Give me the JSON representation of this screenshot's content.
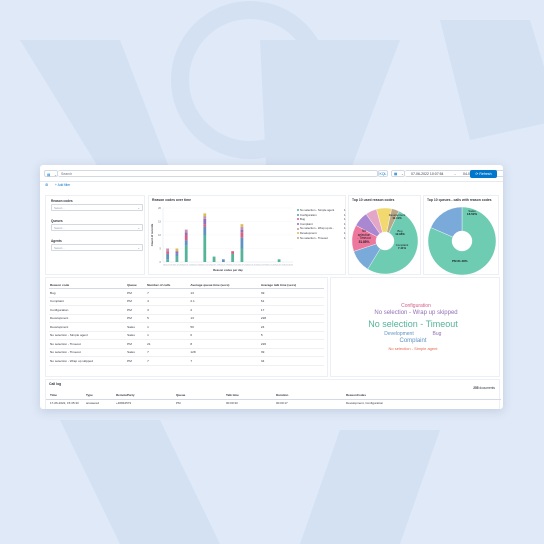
{
  "toolbar": {
    "search_placeholder": "Search",
    "kql_label": "KQL",
    "start_date": "07-06-2022 10:07:54",
    "arrow": "→",
    "end_date": "04-08-2022 10:07:56",
    "refresh_label": "Refresh"
  },
  "filter_bar": {
    "add_filter_label": "+ Add filter"
  },
  "controls": {
    "reason_codes": {
      "label": "Reason codes",
      "placeholder": "Select..."
    },
    "queues": {
      "label": "Queues",
      "placeholder": "Select..."
    },
    "agents": {
      "label": "Agents",
      "placeholder": "Select..."
    }
  },
  "bar_chart": {
    "title": "Reason codes over time",
    "legend": [
      {
        "name": "No selection - Simple agent",
        "count": "1",
        "color": "#54b399"
      },
      {
        "name": "Configuration",
        "count": "1",
        "color": "#6092c0"
      },
      {
        "name": "Bug",
        "count": "1",
        "color": "#d36086"
      },
      {
        "name": "Complaint",
        "count": "1",
        "color": "#9170b8"
      },
      {
        "name": "No selection - Wrap up sk...",
        "count": "1",
        "color": "#ca8eae"
      },
      {
        "name": "Development",
        "count": "1",
        "color": "#d6bf57"
      },
      {
        "name": "No selection - Timeout",
        "count": "1",
        "color": "#b9a888"
      }
    ]
  },
  "chart_data": [
    {
      "type": "bar",
      "title": "Reason codes over time",
      "xlabel": "Reason codes per day",
      "ylabel": "Count of records",
      "stacked": true,
      "x": [
        "2022-07-07",
        "2022-07-09",
        "2022-07-11",
        "2022-07-13",
        "2022-07-15",
        "2022-07-17",
        "2022-07-19",
        "2022-07-21",
        "2022-07-23",
        "2022-07-25",
        "2022-07-27",
        "2022-07-29",
        "2022-07-31",
        "2022-08-02"
      ],
      "series": [
        {
          "name": "No selection - Timeout",
          "color": "#54b399",
          "values": [
            1,
            2,
            6,
            0,
            10,
            2,
            0,
            3,
            5,
            0,
            0,
            0,
            1,
            0
          ]
        },
        {
          "name": "Configuration",
          "color": "#6092c0",
          "values": [
            2,
            1,
            2,
            0,
            3,
            0,
            1,
            0,
            4,
            0,
            0,
            0,
            0,
            0
          ]
        },
        {
          "name": "Bug",
          "color": "#d36086",
          "values": [
            1,
            0,
            2,
            0,
            1,
            0,
            0,
            1,
            2,
            0,
            0,
            0,
            0,
            0
          ]
        },
        {
          "name": "Complaint",
          "color": "#9170b8",
          "values": [
            0,
            1,
            1,
            0,
            2,
            0,
            0,
            0,
            1,
            0,
            0,
            0,
            0,
            0
          ]
        },
        {
          "name": "No selection - Wrap up skipped",
          "color": "#ca8eae",
          "values": [
            1,
            0,
            1,
            0,
            1,
            0,
            0,
            0,
            1,
            0,
            0,
            0,
            0,
            0
          ]
        },
        {
          "name": "Development",
          "color": "#d6bf57",
          "values": [
            0,
            1,
            0,
            0,
            1,
            0,
            0,
            0,
            1,
            0,
            0,
            0,
            0,
            0
          ]
        },
        {
          "name": "No selection - Simple agent",
          "color": "#b9a888",
          "values": [
            0,
            0,
            0,
            0,
            0,
            0,
            0,
            0,
            0,
            0,
            0,
            0,
            0,
            0
          ]
        }
      ],
      "ylim": [
        0,
        20
      ]
    },
    {
      "type": "pie",
      "title": "Top 10 used reason codes",
      "donut": true,
      "slices": [
        {
          "label": "No selection - Timeout",
          "value": 51.85,
          "color": "#6dccb1"
        },
        {
          "label": "Development",
          "value": 11.11,
          "color": "#79aad9"
        },
        {
          "label": "Bug",
          "value": 12.96,
          "color": "#ee789d"
        },
        {
          "label": "Complaint",
          "value": 7.41,
          "color": "#a987d1"
        },
        {
          "label": "No selection - Wrap up skipped",
          "value": 5.56,
          "color": "#e4a6c7"
        },
        {
          "label": "Configuration",
          "value": 7.41,
          "color": "#f1d86f"
        },
        {
          "label": "No selection - Simple agent",
          "value": 3.7,
          "color": "#b9a888"
        }
      ],
      "printed_labels": [
        {
          "label": "No selection - Timeout",
          "pct": "51.85%"
        },
        {
          "label": "Development",
          "pct": "11.11%"
        },
        {
          "label": "Bug",
          "pct": "12.96%"
        },
        {
          "label": "Complaint",
          "pct": "7.41%"
        }
      ]
    },
    {
      "type": "pie",
      "title": "Top 10 queues - calls with reason codes",
      "donut": true,
      "slices": [
        {
          "label": "PM",
          "value": 81.48,
          "color": "#6dccb1"
        },
        {
          "label": "Sales",
          "value": 18.52,
          "color": "#79aad9"
        }
      ]
    }
  ],
  "pie1": {
    "title": "Top 10 used reason codes",
    "labels": {
      "timeout": [
        "No",
        "selection",
        "- Timeout",
        "51.85%"
      ],
      "development": [
        "Development",
        "11.11%"
      ],
      "bug": [
        "Bug",
        "12.96%"
      ],
      "complaint": [
        "Complaint",
        "7.41%"
      ]
    }
  },
  "pie2": {
    "title": "Top 10 queues - calls with reason codes",
    "labels": {
      "sales": [
        "Sales",
        "18.52%"
      ],
      "pm": "PM 81.48%"
    }
  },
  "table": {
    "headers": [
      "Reason code",
      "Queue",
      "Number of calls",
      "Average queue time (secs)",
      "Average talk time (secs)"
    ],
    "rows": [
      [
        "Bug",
        "PM",
        "7",
        "13",
        "39"
      ],
      [
        "Complaint",
        "PM",
        "4",
        "2.1",
        "61"
      ],
      [
        "Configuration",
        "PM",
        "3",
        "2",
        "17"
      ],
      [
        "Development",
        "PM",
        "5",
        "13",
        "228"
      ],
      [
        "Development",
        "Sales",
        "1",
        "50",
        "24"
      ],
      [
        "No selection - Simple agent",
        "Sales",
        "1",
        "0",
        "5"
      ],
      [
        "No selection - Timeout",
        "PM",
        "21",
        "8",
        "226"
      ],
      [
        "No selection - Timeout",
        "Sales",
        "7",
        "128",
        "39"
      ],
      [
        "No selection - Wrap up skipped",
        "PM",
        "7",
        "7",
        "34"
      ]
    ]
  },
  "word_cloud": [
    {
      "text": "Configuration",
      "color": "#d36086"
    },
    {
      "text": "No selection - Wrap up skipped",
      "color": "#9170b8"
    },
    {
      "text": "No selection - Timeout",
      "color": "#54b399"
    },
    {
      "text": "Development",
      "color": "#6092c0"
    },
    {
      "text": "Bug",
      "color": "#9170b8"
    },
    {
      "text": "Complaint",
      "color": "#6092c0"
    },
    {
      "text": "No selection - Simple agent",
      "color": "#e7664c"
    }
  ],
  "calllog": {
    "title": "Call log",
    "count": "255",
    "count_suffix": "documents",
    "headers": [
      "Time",
      "Type",
      "RemoteParty",
      "Queue",
      "Talk time",
      "Duration",
      "ReasonCodes"
    ],
    "rows": [
      [
        "17-06-2022, 15:35:33",
        "answered",
        "+46844573",
        "PM",
        "00:00:33",
        "00:00:17",
        "Development, Configuration"
      ]
    ]
  },
  "colors": {
    "accent": "#0077cc",
    "background": "#dfe9f7"
  }
}
